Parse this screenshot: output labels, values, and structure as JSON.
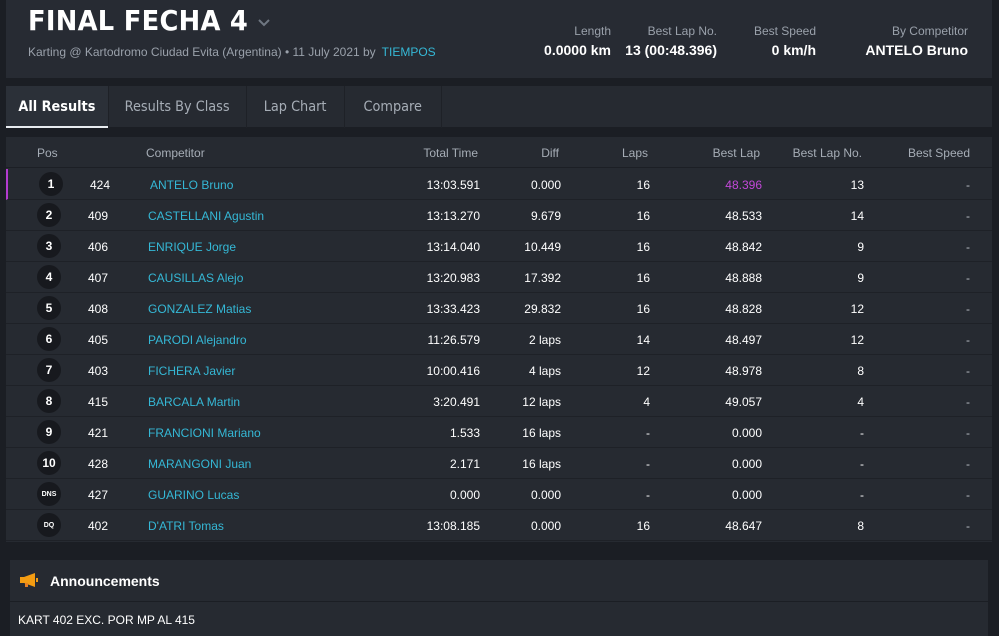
{
  "header": {
    "title": "FINAL FECHA 4",
    "subtitle": "Karting @ Kartodromo Ciudad Evita (Argentina) • 11 July 2021 by",
    "subtitle_link": "TIEMPOS",
    "stats": [
      {
        "label": "Length",
        "value": "0.0000 km"
      },
      {
        "label": "Best Lap No.",
        "value": "13 (00:48.396)"
      },
      {
        "label": "Best Speed",
        "value": "0 km/h"
      },
      {
        "label": "By Competitor",
        "value": "ANTELO Bruno"
      }
    ]
  },
  "tabs": [
    {
      "label": "All Results",
      "active": true
    },
    {
      "label": "Results By Class",
      "active": false
    },
    {
      "label": "Lap Chart",
      "active": false
    },
    {
      "label": "Compare",
      "active": false
    }
  ],
  "table": {
    "headers": {
      "pos": "Pos",
      "competitor": "Competitor",
      "total_time": "Total Time",
      "diff": "Diff",
      "laps": "Laps",
      "best_lap": "Best Lap",
      "best_lap_no": "Best Lap No.",
      "best_speed": "Best Speed"
    },
    "rows": [
      {
        "pos": "1",
        "num": "424",
        "name": "ANTELO Bruno",
        "total": "13:03.591",
        "diff": "0.000",
        "laps": "16",
        "best_lap": "48.396",
        "best_lap_no": "13",
        "best_speed": "-"
      },
      {
        "pos": "2",
        "num": "409",
        "name": "CASTELLANI Agustin",
        "total": "13:13.270",
        "diff": "9.679",
        "laps": "16",
        "best_lap": "48.533",
        "best_lap_no": "14",
        "best_speed": "-"
      },
      {
        "pos": "3",
        "num": "406",
        "name": "ENRIQUE Jorge",
        "total": "13:14.040",
        "diff": "10.449",
        "laps": "16",
        "best_lap": "48.842",
        "best_lap_no": "9",
        "best_speed": "-"
      },
      {
        "pos": "4",
        "num": "407",
        "name": "CAUSILLAS Alejo",
        "total": "13:20.983",
        "diff": "17.392",
        "laps": "16",
        "best_lap": "48.888",
        "best_lap_no": "9",
        "best_speed": "-"
      },
      {
        "pos": "5",
        "num": "408",
        "name": "GONZALEZ Matias",
        "total": "13:33.423",
        "diff": "29.832",
        "laps": "16",
        "best_lap": "48.828",
        "best_lap_no": "12",
        "best_speed": "-"
      },
      {
        "pos": "6",
        "num": "405",
        "name": "PARODI Alejandro",
        "total": "11:26.579",
        "diff": "2 laps",
        "laps": "14",
        "best_lap": "48.497",
        "best_lap_no": "12",
        "best_speed": "-"
      },
      {
        "pos": "7",
        "num": "403",
        "name": "FICHERA Javier",
        "total": "10:00.416",
        "diff": "4 laps",
        "laps": "12",
        "best_lap": "48.978",
        "best_lap_no": "8",
        "best_speed": "-"
      },
      {
        "pos": "8",
        "num": "415",
        "name": "BARCALA Martin",
        "total": "3:20.491",
        "diff": "12 laps",
        "laps": "4",
        "best_lap": "49.057",
        "best_lap_no": "4",
        "best_speed": "-"
      },
      {
        "pos": "9",
        "num": "421",
        "name": "FRANCIONI Mariano",
        "total": "1.533",
        "diff": "16 laps",
        "laps": "-",
        "best_lap": "0.000",
        "best_lap_no": "-",
        "best_speed": "-"
      },
      {
        "pos": "10",
        "num": "428",
        "name": "MARANGONI Juan",
        "total": "2.171",
        "diff": "16 laps",
        "laps": "-",
        "best_lap": "0.000",
        "best_lap_no": "-",
        "best_speed": "-"
      },
      {
        "pos": "DNS",
        "num": "427",
        "name": "GUARINO Lucas",
        "total": "0.000",
        "diff": "0.000",
        "laps": "-",
        "best_lap": "0.000",
        "best_lap_no": "-",
        "best_speed": "-"
      },
      {
        "pos": "DQ",
        "num": "402",
        "name": "D'ATRI Tomas",
        "total": "13:08.185",
        "diff": "0.000",
        "laps": "16",
        "best_lap": "48.647",
        "best_lap_no": "8",
        "best_speed": "-"
      }
    ]
  },
  "announcements": {
    "title": "Announcements",
    "text": "KART 402 EXC. POR MP AL 415"
  },
  "colors": {
    "accent": "#35b8d6",
    "best_lap": "#c248d8",
    "background": "#1b1e24",
    "panel": "#262a31"
  },
  "icons": {
    "title_caret": "chevron-down-icon",
    "announcements": "megaphone-icon"
  }
}
